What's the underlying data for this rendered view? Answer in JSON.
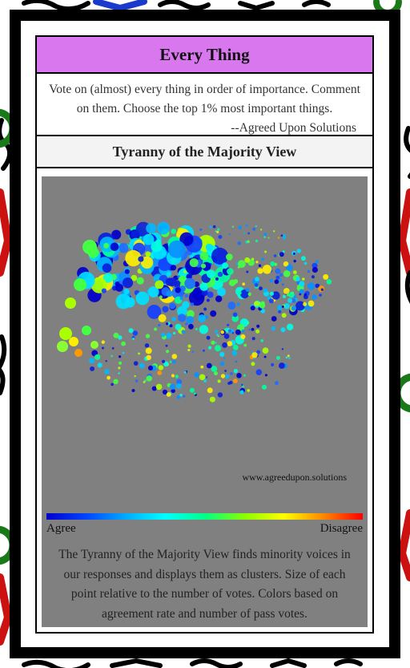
{
  "header": {
    "title": "Every Thing"
  },
  "intro": {
    "text": "Vote on (almost) every thing in order of importance. Comment on them. Choose the top 1% most important things.",
    "attribution": "--Agreed Upon Solutions"
  },
  "view": {
    "title": "Tyranny of the Majority View",
    "watermark": "www.agreedupon.solutions",
    "scale_left": "Agree",
    "scale_right": "Disagree",
    "explanation": "The Tyranny of the Majority View finds minority voices in our responses and displays them as clusters. Size of each point relative to the number of votes. Colors based on agreement rate and number of pass votes."
  },
  "colors": {
    "title_bar": "#d977ef",
    "viz_bg": "#808080",
    "frame": "#000000"
  }
}
